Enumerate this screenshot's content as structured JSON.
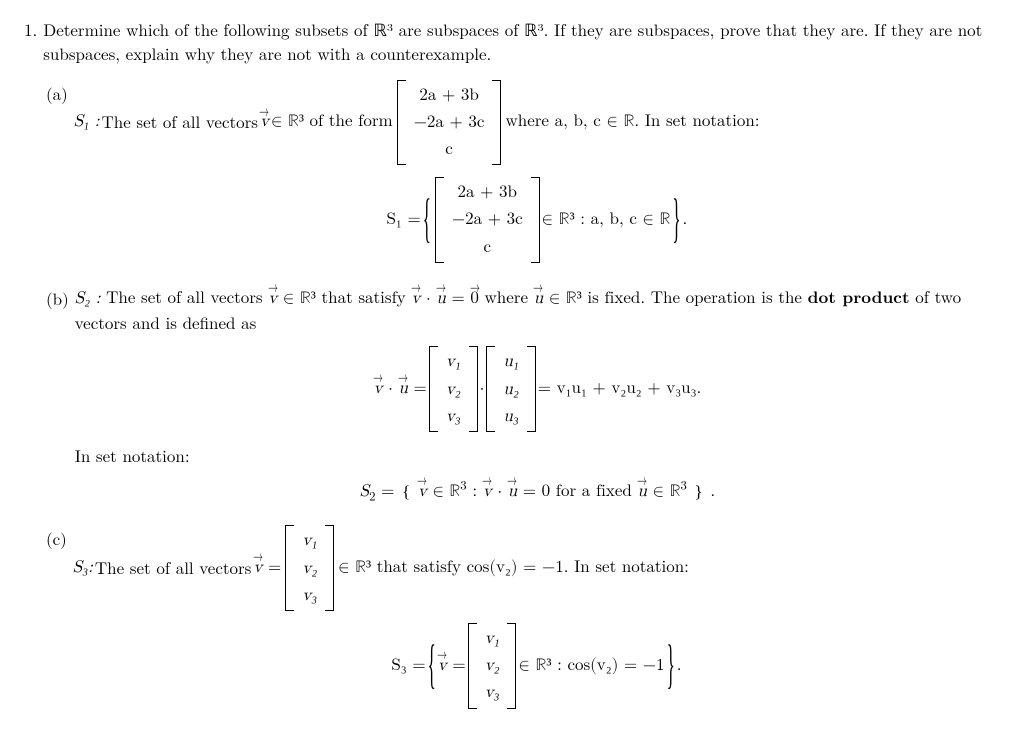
{
  "problem": {
    "number": "1.",
    "text": "Determine which of the following subsets of ℝ³ are subspaces of ℝ³. If they are subspaces, prove that they are. If they are not subspaces, explain why they are not with a counterexample."
  },
  "partA": {
    "label": "(a)",
    "lead_symbol": "S₁ :",
    "lead_before": "The set of all vectors ",
    "lead_vec": "v",
    "lead_mid": " ∈ ℝ³ of the form ",
    "vector_rows": [
      "2a + 3b",
      "−2a + 3c",
      "c"
    ],
    "lead_after": " where a, b, c ∈ ℝ. In set notation:",
    "display_prefix": "S₁ = ",
    "display_cond": " ∈ ℝ³ : a, b, c ∈ ℝ",
    "display_suffix": " ."
  },
  "partB": {
    "label": "(b)",
    "lead_symbol": "S₂ :",
    "lead_text_1": "The set of all vectors ",
    "lead_text_2": " ∈ ℝ³ that satisfy ",
    "lead_text_3": " where ",
    "lead_text_4": " ∈ ℝ³ is fixed. The operation is the ",
    "bold": "dot product",
    "lead_text_5": " of two vectors and is defined as",
    "eq_zero": " = 0⃗",
    "dot_lhs_rows_v": [
      "v₁",
      "v₂",
      "v₃"
    ],
    "dot_lhs_rows_u": [
      "u₁",
      "u₂",
      "u₃"
    ],
    "dot_prefix": "v⃗ · u⃗ = ",
    "dot_mid": " · ",
    "dot_rhs": " = v₁u₁ + v₂u₂ + v₃u₃.",
    "inset_label": "In set notation:",
    "s2_display": "S₂ = { v⃗ ∈ ℝ³ : v⃗ · u⃗ = 0 for a fixed u⃗ ∈ ℝ³ } ."
  },
  "partC": {
    "label": "(c)",
    "lead_symbol": "S₃:",
    "lead_text_1": "The set of all vectors ",
    "v_eq": "v⃗ = ",
    "vec_rows": [
      "v₁",
      "v₂",
      "v₃"
    ],
    "lead_text_2": " ∈ ℝ³ that satisfy cos(v₂) = −1. In set notation:",
    "display_prefix": "S₃ = ",
    "display_veq": "v⃗ = ",
    "display_cond": " ∈ ℝ³ : cos(v₂) = −1",
    "display_suffix": " ."
  }
}
